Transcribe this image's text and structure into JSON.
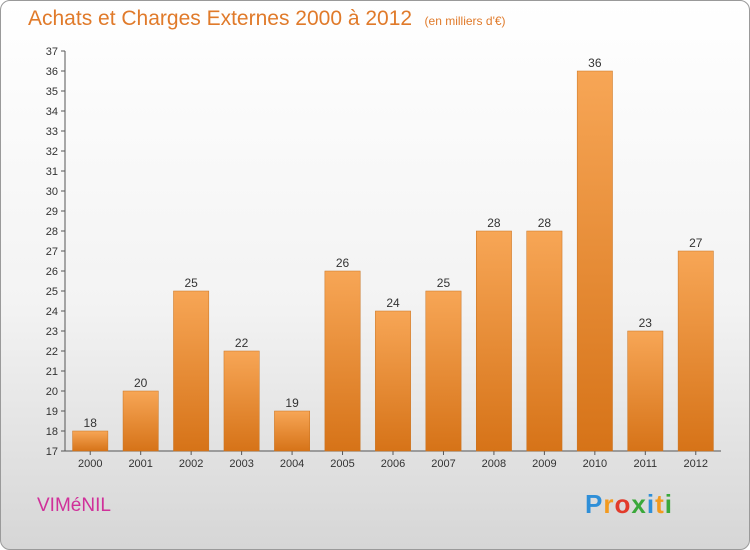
{
  "title": "Achats et Charges Externes 2000 à 2012",
  "unit": "(en milliers d'€)",
  "commune": "VIMéNIL",
  "logo": {
    "letters": [
      "P",
      "r",
      "o",
      "x",
      "i",
      "t",
      "i"
    ],
    "colors": [
      "#2f8fd8",
      "#f39a1e",
      "#e23b2b",
      "#3aa83a",
      "#2f8fd8",
      "#f39a1e",
      "#3aa83a"
    ]
  },
  "colors": {
    "bar_top": "#f7a656",
    "bar_bottom": "#d67318",
    "title": "#e07a2a",
    "commune": "#d0309a"
  },
  "chart_data": {
    "type": "bar",
    "categories": [
      "2000",
      "2001",
      "2002",
      "2003",
      "2004",
      "2005",
      "2006",
      "2007",
      "2008",
      "2009",
      "2010",
      "2011",
      "2012"
    ],
    "values": [
      18,
      20,
      25,
      22,
      19,
      26,
      24,
      25,
      28,
      28,
      36,
      23,
      27
    ],
    "ylim": [
      17,
      37
    ],
    "yticks": [
      17,
      18,
      19,
      20,
      21,
      22,
      23,
      24,
      25,
      26,
      27,
      28,
      29,
      30,
      31,
      32,
      33,
      34,
      35,
      36,
      37
    ],
    "grid": false,
    "data_labels": true
  }
}
